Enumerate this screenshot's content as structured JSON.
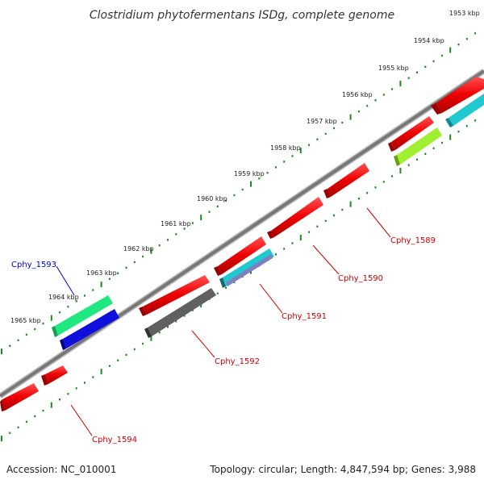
{
  "title": "Clostridium phytofermentans ISDg, complete genome",
  "ticks": [
    "1953 kbp",
    "1954 kbp",
    "1955 kbp",
    "1956 kbp",
    "1957 kbp",
    "1958 kbp",
    "1959 kbp",
    "1960 kbp",
    "1961 kbp",
    "1962 kbp",
    "1963 kbp",
    "1964 kbp",
    "1965 kbp"
  ],
  "genes": [
    {
      "name": "Cphy_1589",
      "color": "#cc0000"
    },
    {
      "name": "Cphy_1590",
      "color": "#cc0000"
    },
    {
      "name": "Cphy_1591",
      "color": "#cc0000"
    },
    {
      "name": "Cphy_1592",
      "color": "#cc0000"
    },
    {
      "name": "Cphy_1593",
      "color": "#0000cc"
    },
    {
      "name": "Cphy_1594",
      "color": "#cc0000"
    }
  ],
  "colors": {
    "backbone": "#808080",
    "tick_dots": "#1a8a1a",
    "gene_red": "#ee0000",
    "gene_blue": "#1010dd",
    "gene_green": "#20e880",
    "gene_cyan": "#20c8d0",
    "gene_lime": "#a0f030",
    "gene_gray": "#606060",
    "gene_purple": "#8080c0"
  },
  "footer": {
    "accession": "Accession: NC_010001",
    "summary": "Topology: circular; Length: 4,847,594 bp; Genes: 3,988"
  }
}
